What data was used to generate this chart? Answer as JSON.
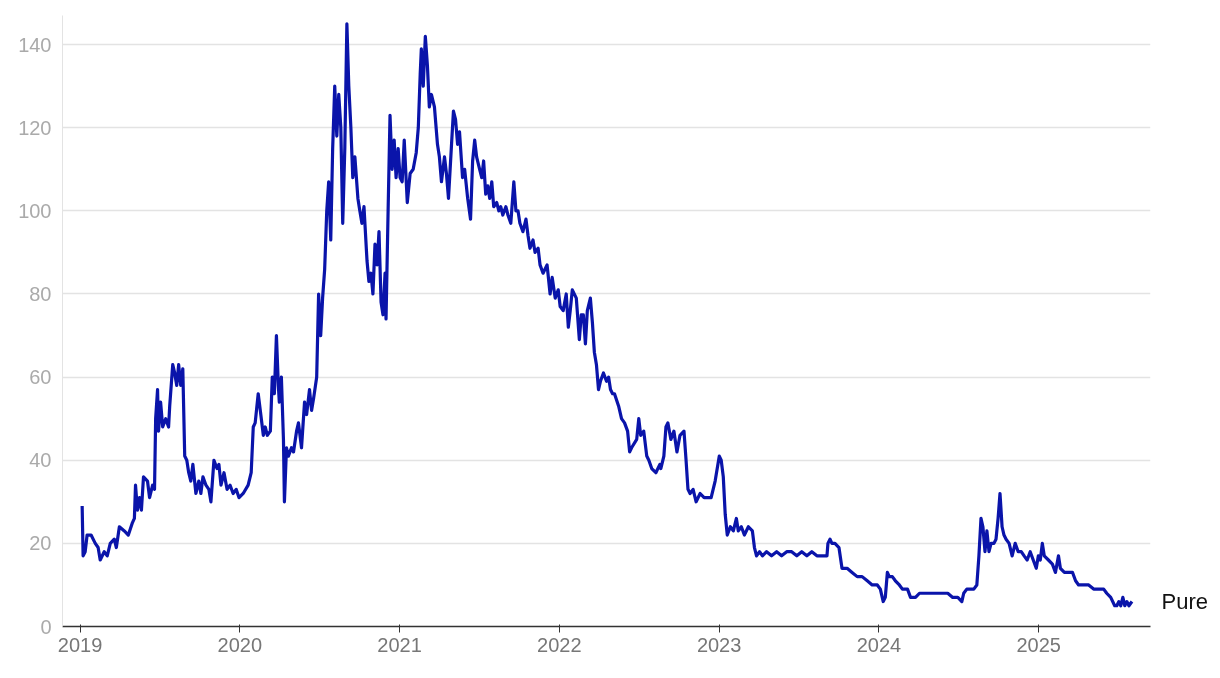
{
  "chart_data": {
    "type": "line",
    "xlim": [
      2018.89,
      2025.7
    ],
    "xticks": [
      2019,
      2020,
      2021,
      2022,
      2023,
      2024,
      2025
    ],
    "ylim": [
      0,
      147
    ],
    "yticks": [
      0,
      20,
      40,
      60,
      80,
      100,
      120,
      140
    ],
    "grid": "y",
    "legend": false,
    "marker": "none",
    "line_style": "solid",
    "series": [
      {
        "name": "Pure",
        "color": "#0a14aa",
        "x": [
          2019.013,
          2019.019,
          2019.032,
          2019.044,
          2019.069,
          2019.095,
          2019.113,
          2019.126,
          2019.151,
          2019.17,
          2019.189,
          2019.214,
          2019.227,
          2019.246,
          2019.277,
          2019.302,
          2019.328,
          2019.34,
          2019.347,
          2019.359,
          2019.372,
          2019.384,
          2019.397,
          2019.422,
          2019.435,
          2019.454,
          2019.466,
          2019.473,
          2019.485,
          2019.491,
          2019.504,
          2019.517,
          2019.536,
          2019.554,
          2019.561,
          2019.58,
          2019.592,
          2019.605,
          2019.617,
          2019.63,
          2019.643,
          2019.655,
          2019.668,
          2019.68,
          2019.693,
          2019.706,
          2019.725,
          2019.743,
          2019.756,
          2019.769,
          2019.788,
          2019.806,
          2019.819,
          2019.838,
          2019.857,
          2019.869,
          2019.882,
          2019.901,
          2019.92,
          2019.939,
          2019.958,
          2019.977,
          2019.995,
          2020.021,
          2020.052,
          2020.071,
          2020.084,
          2020.096,
          2020.115,
          2020.128,
          2020.147,
          2020.159,
          2020.172,
          2020.191,
          2020.203,
          2020.216,
          2020.229,
          2020.241,
          2020.247,
          2020.26,
          2020.273,
          2020.279,
          2020.292,
          2020.304,
          2020.323,
          2020.336,
          2020.355,
          2020.367,
          2020.386,
          2020.405,
          2020.418,
          2020.436,
          2020.449,
          2020.462,
          2020.481,
          2020.493,
          2020.506,
          2020.518,
          2020.531,
          2020.544,
          2020.556,
          2020.569,
          2020.581,
          2020.594,
          2020.607,
          2020.619,
          2020.632,
          2020.644,
          2020.657,
          2020.67,
          2020.682,
          2020.695,
          2020.707,
          2020.72,
          2020.739,
          2020.751,
          2020.764,
          2020.777,
          2020.796,
          2020.808,
          2020.821,
          2020.833,
          2020.846,
          2020.859,
          2020.871,
          2020.884,
          2020.896,
          2020.909,
          2020.915,
          2020.928,
          2020.94,
          2020.953,
          2020.966,
          2020.978,
          2020.991,
          2021.003,
          2021.016,
          2021.029,
          2021.048,
          2021.066,
          2021.085,
          2021.104,
          2021.117,
          2021.129,
          2021.136,
          2021.148,
          2021.161,
          2021.174,
          2021.186,
          2021.199,
          2021.218,
          2021.237,
          2021.249,
          2021.262,
          2021.281,
          2021.293,
          2021.306,
          2021.325,
          2021.337,
          2021.35,
          2021.363,
          2021.375,
          2021.394,
          2021.407,
          2021.426,
          2021.444,
          2021.457,
          2021.47,
          2021.482,
          2021.501,
          2021.514,
          2021.526,
          2021.539,
          2021.552,
          2021.564,
          2021.577,
          2021.589,
          2021.608,
          2021.621,
          2021.633,
          2021.646,
          2021.665,
          2021.678,
          2021.696,
          2021.715,
          2021.728,
          2021.741,
          2021.753,
          2021.772,
          2021.791,
          2021.804,
          2021.816,
          2021.835,
          2021.848,
          2021.867,
          2021.879,
          2021.898,
          2021.923,
          2021.942,
          2021.955,
          2021.974,
          2021.993,
          2022.005,
          2022.024,
          2022.043,
          2022.056,
          2022.068,
          2022.081,
          2022.106,
          2022.125,
          2022.137,
          2022.15,
          2022.163,
          2022.175,
          2022.194,
          2022.207,
          2022.219,
          2022.232,
          2022.245,
          2022.257,
          2022.276,
          2022.295,
          2022.308,
          2022.32,
          2022.333,
          2022.345,
          2022.371,
          2022.389,
          2022.408,
          2022.427,
          2022.44,
          2022.452,
          2022.484,
          2022.497,
          2022.509,
          2022.528,
          2022.547,
          2022.56,
          2022.578,
          2022.604,
          2022.629,
          2022.635,
          2022.654,
          2022.667,
          2022.679,
          2022.698,
          2022.717,
          2022.736,
          2022.755,
          2022.78,
          2022.793,
          2022.805,
          2022.818,
          2022.837,
          2022.856,
          2022.881,
          2022.906,
          2022.931,
          2022.95,
          2022.975,
          2022.988,
          2023.001,
          2023.013,
          2023.026,
          2023.038,
          2023.051,
          2023.07,
          2023.089,
          2023.108,
          2023.12,
          2023.139,
          2023.158,
          2023.183,
          2023.208,
          2023.221,
          2023.234,
          2023.253,
          2023.271,
          2023.297,
          2023.328,
          2023.36,
          2023.391,
          2023.423,
          2023.454,
          2023.486,
          2023.517,
          2023.549,
          2023.58,
          2023.612,
          2023.643,
          2023.675,
          2023.681,
          2023.694,
          2023.706,
          2023.725,
          2023.75,
          2023.769,
          2023.801,
          2023.832,
          2023.864,
          2023.895,
          2023.927,
          2023.958,
          2023.99,
          2024.009,
          2024.027,
          2024.04,
          2024.053,
          2024.065,
          2024.084,
          2024.103,
          2024.128,
          2024.147,
          2024.179,
          2024.198,
          2024.229,
          2024.254,
          2024.279,
          2024.305,
          2024.336,
          2024.368,
          2024.399,
          2024.431,
          2024.462,
          2024.494,
          2024.519,
          2024.525,
          2024.531,
          2024.55,
          2024.569,
          2024.594,
          2024.613,
          2024.626,
          2024.639,
          2024.651,
          2024.664,
          2024.676,
          2024.689,
          2024.702,
          2024.72,
          2024.733,
          2024.746,
          2024.758,
          2024.771,
          2024.783,
          2024.796,
          2024.815,
          2024.834,
          2024.853,
          2024.872,
          2024.891,
          2024.909,
          2024.928,
          2024.947,
          2024.966,
          2024.985,
          2024.998,
          2025.01,
          2025.023,
          2025.035,
          2025.061,
          2025.086,
          2025.105,
          2025.124,
          2025.136,
          2025.161,
          2025.187,
          2025.212,
          2025.231,
          2025.25,
          2025.281,
          2025.313,
          2025.344,
          2025.376,
          2025.407,
          2025.426,
          2025.451,
          2025.476,
          2025.489,
          2025.502,
          2025.514,
          2025.527,
          2025.539,
          2025.552,
          2025.565,
          2025.584
        ],
        "values": [
          29,
          17,
          18,
          22,
          22,
          20,
          19,
          16,
          18,
          17,
          20,
          21,
          19,
          24,
          23,
          22,
          25,
          26,
          34,
          28,
          31,
          28,
          36,
          35,
          31,
          34,
          33,
          50,
          57,
          47,
          54,
          48,
          50,
          48,
          53,
          63,
          61,
          58,
          63,
          58,
          62,
          41,
          40,
          37,
          35,
          39,
          32,
          35,
          32,
          36,
          34,
          33,
          30,
          40,
          38,
          39,
          34,
          37,
          33,
          34,
          32,
          33,
          31,
          32,
          34,
          37,
          48,
          49,
          56,
          52,
          46,
          48,
          46,
          47,
          60,
          56,
          70,
          58,
          54,
          60,
          45,
          30,
          43,
          41,
          43,
          42,
          47,
          49,
          43,
          54,
          51,
          57,
          52,
          55,
          60,
          80,
          70,
          79,
          86,
          100,
          107,
          93,
          115,
          130,
          118,
          128,
          120,
          97,
          115,
          145,
          130,
          120,
          108,
          113,
          103,
          100,
          97,
          101,
          88,
          83,
          85,
          80,
          92,
          87,
          95,
          78,
          75,
          85,
          74,
          100,
          123,
          110,
          117,
          108,
          115,
          108,
          107,
          117,
          102,
          109,
          110,
          114,
          120,
          133,
          139,
          130,
          142,
          135,
          125,
          128,
          125,
          116,
          113,
          107,
          113,
          109,
          103,
          116,
          124,
          122,
          116,
          119,
          108,
          110,
          103,
          98,
          112,
          117,
          113,
          110,
          108,
          112,
          104,
          106,
          103,
          107,
          101,
          102,
          100,
          101,
          99,
          101,
          99,
          97,
          107,
          100,
          100,
          97,
          95,
          98,
          94,
          91,
          93,
          90,
          91,
          87,
          85,
          87,
          80,
          84,
          79,
          81,
          77,
          76,
          80,
          72,
          76,
          81,
          79,
          69,
          75,
          75,
          68,
          76,
          79,
          73,
          66,
          63,
          57,
          59,
          61,
          59,
          60,
          57,
          56,
          56,
          53,
          50,
          49,
          47,
          42,
          43,
          45,
          50,
          46,
          47,
          41,
          40,
          38,
          37,
          39,
          38,
          41,
          48,
          49,
          45,
          47,
          42,
          46,
          47,
          40,
          33,
          32,
          33,
          30,
          32,
          31,
          31,
          31,
          35,
          38,
          41,
          40,
          36,
          27,
          22,
          24,
          23,
          26,
          23,
          24,
          22,
          24,
          23,
          19,
          17,
          18,
          17,
          18,
          17,
          18,
          17,
          18,
          18,
          17,
          18,
          17,
          18,
          17,
          17,
          17,
          20,
          21,
          20,
          20,
          19,
          14,
          14,
          13,
          12,
          12,
          11,
          10,
          10,
          9,
          6,
          7,
          13,
          12,
          12,
          11,
          10,
          9,
          9,
          7,
          7,
          8,
          8,
          8,
          8,
          8,
          8,
          8,
          7,
          7,
          6,
          7,
          8,
          9,
          9,
          9,
          10,
          17,
          26,
          24,
          18,
          23,
          18,
          20,
          20,
          21,
          26,
          32,
          24,
          22,
          21,
          20,
          17,
          20,
          18,
          18,
          17,
          16,
          18,
          16,
          14,
          17,
          16,
          20,
          17,
          16,
          15,
          13,
          17,
          14,
          13,
          13,
          13,
          11,
          10,
          10,
          10,
          9,
          9,
          9,
          8,
          7,
          5,
          5,
          6,
          5,
          7,
          5,
          6,
          5,
          6
        ]
      }
    ]
  }
}
